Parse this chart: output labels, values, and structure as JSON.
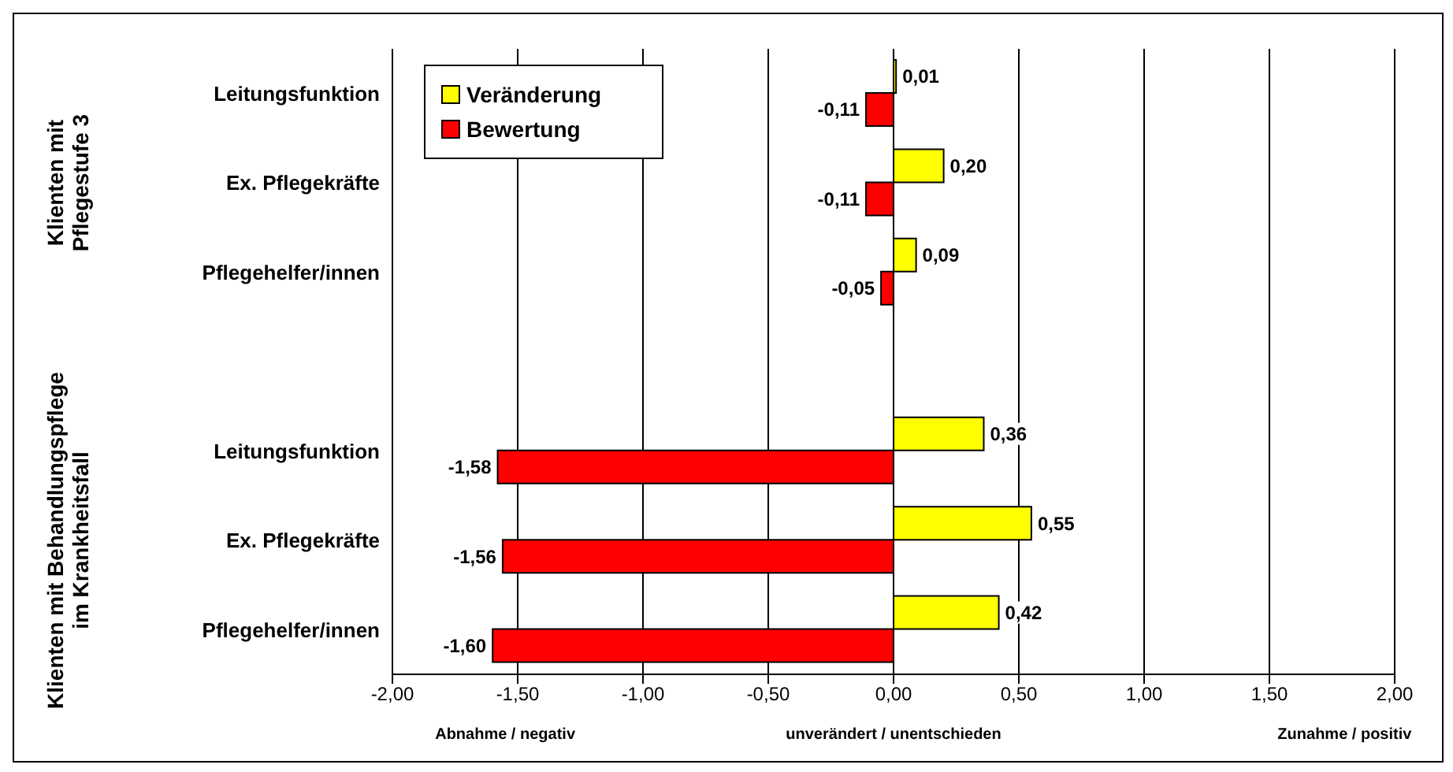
{
  "chart_data": {
    "type": "bar",
    "orientation": "horizontal",
    "categories": [
      "Leitungsfunktion",
      "Ex. Pflegekräfte",
      "Pflegehelfer/innen",
      null,
      "Leitungsfunktion",
      "Ex. Pflegekräfte",
      "Pflegehelfer/innen"
    ],
    "series": [
      {
        "name": "Veränderung",
        "color": "#ffff00",
        "values": [
          0.01,
          0.2,
          0.09,
          null,
          0.36,
          0.55,
          0.42
        ],
        "value_labels": [
          "0,01",
          "0,20",
          "0,09",
          null,
          "0,36",
          "0,55",
          "0,42"
        ]
      },
      {
        "name": "Bewertung",
        "color": "#ff0000",
        "values": [
          -0.11,
          -0.11,
          -0.05,
          null,
          -1.58,
          -1.56,
          -1.6
        ],
        "value_labels": [
          "-0,11",
          "-0,11",
          "-0,05",
          null,
          "-1,58",
          "-1,56",
          "-1,60"
        ]
      }
    ],
    "xlim": [
      -2,
      2
    ],
    "xticks": [
      {
        "value": -2,
        "label": "-2,00"
      },
      {
        "value": -1.5,
        "label": "-1,50"
      },
      {
        "value": -1,
        "label": "-1,00"
      },
      {
        "value": -0.5,
        "label": "-0,50"
      },
      {
        "value": 0,
        "label": "0,00"
      },
      {
        "value": 0.5,
        "label": "0,50"
      },
      {
        "value": 1,
        "label": "1,00"
      },
      {
        "value": 1.5,
        "label": "1,50"
      },
      {
        "value": 2,
        "label": "2,00"
      }
    ],
    "grid": "x",
    "legend": "top left",
    "annotations": [
      "Klienten mit Pflegestufe 3",
      "Klienten mit Behandlungspflege im Krankheitsfall",
      "Abnahme / negativ",
      "unverändert / unentschieden",
      "Zunahme / positiv"
    ]
  }
}
